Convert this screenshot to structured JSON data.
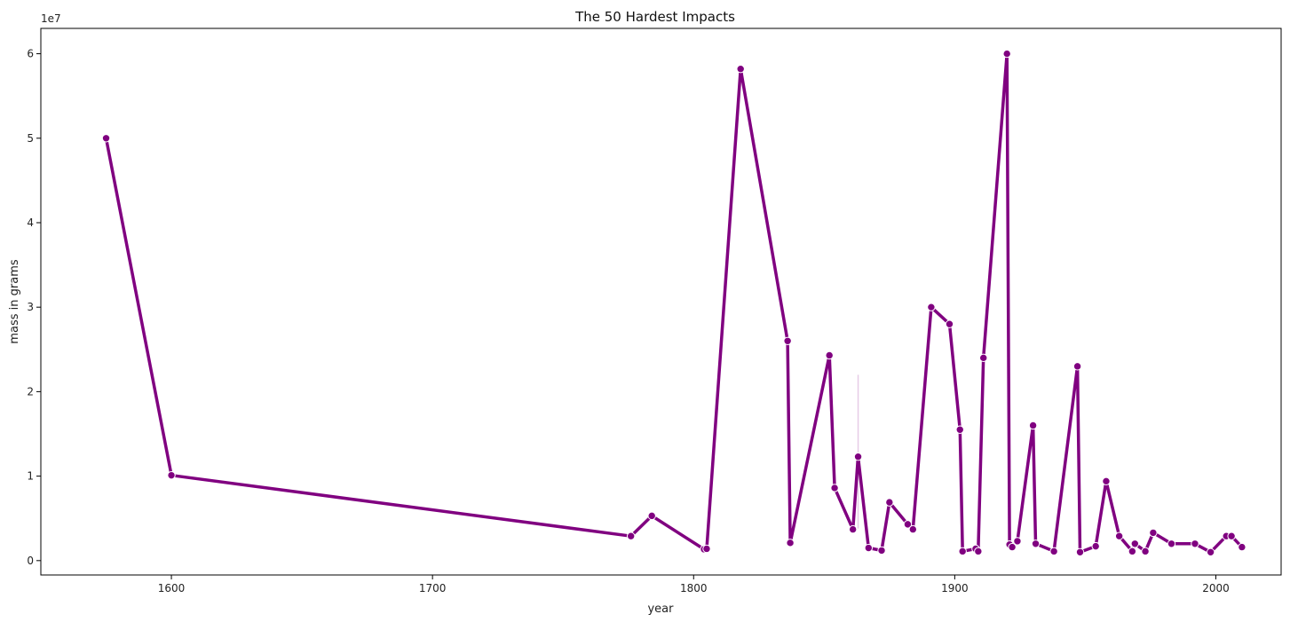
{
  "chart_data": {
    "type": "line",
    "title": "The 50 Hardest Impacts",
    "xlabel": "year",
    "ylabel": "mass in grams",
    "y_offset_label": "1e7",
    "xlim": [
      1550,
      2025
    ],
    "ylim": [
      -1700000,
      63000000
    ],
    "xticks": [
      1600,
      1700,
      1800,
      1900,
      2000
    ],
    "yticks": [
      0,
      10000000,
      20000000,
      30000000,
      40000000,
      50000000,
      60000000
    ],
    "ytick_labels": [
      "0",
      "1",
      "2",
      "3",
      "4",
      "5",
      "6"
    ],
    "grid": false,
    "legend": "none",
    "line_color": "#800080",
    "series": [
      {
        "x": [
          1575,
          1600,
          1776,
          1784,
          1804,
          1805,
          1818,
          1836,
          1837,
          1852,
          1854,
          1861,
          1863,
          1867,
          1872,
          1875,
          1882,
          1884,
          1891,
          1898,
          1902,
          1903,
          1908,
          1909,
          1911,
          1920,
          1921,
          1922,
          1924,
          1930,
          1931,
          1938,
          1947,
          1948,
          1954,
          1958,
          1963,
          1968,
          1969,
          1973,
          1976,
          1983,
          1992,
          1998,
          2004,
          2006,
          2010
        ],
        "y": [
          50000000,
          10100000,
          2900000,
          5300000,
          1350000,
          1400000,
          58200000,
          26000000,
          2100000,
          24300000,
          8600000,
          3700000,
          12300000,
          1500000,
          1200000,
          6900000,
          4300000,
          3700000,
          30000000,
          28000000,
          15500000,
          1100000,
          1400000,
          1100000,
          24000000,
          60000000,
          1900000,
          1600000,
          2300000,
          16000000,
          2000000,
          1100000,
          23000000,
          1000000,
          1700000,
          9400000,
          2900000,
          1100000,
          2000000,
          1100000,
          3300000,
          2000000,
          2000000,
          1000000,
          2900000,
          2900000,
          1600000
        ]
      }
    ],
    "error_band": {
      "x": 1863,
      "low": 3800000,
      "high": 22000000
    }
  }
}
